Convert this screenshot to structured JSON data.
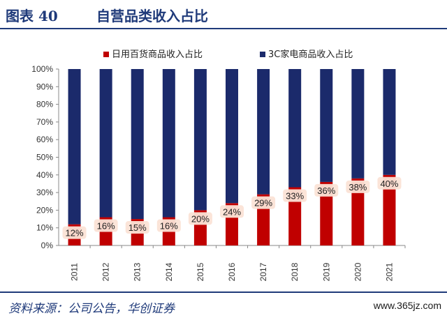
{
  "header": {
    "figure_label": "图表 40",
    "title": "自营品类收入占比"
  },
  "source": {
    "text": "资料来源：公司公告，华创证券"
  },
  "watermark": {
    "text": "www.365jz.com"
  },
  "colors": {
    "daily": "#c00000",
    "electronics": "#1b2a6b",
    "label_bg": "#fbe3d6"
  },
  "chart_data": {
    "type": "bar",
    "stacked": true,
    "categories": [
      "2011",
      "2012",
      "2013",
      "2014",
      "2015",
      "2016",
      "2017",
      "2018",
      "2019",
      "2020",
      "2021"
    ],
    "series": [
      {
        "name": "日用百货商品收入占比",
        "values": [
          12,
          16,
          15,
          16,
          20,
          24,
          29,
          33,
          36,
          38,
          40
        ]
      },
      {
        "name": "3C家电商品收入占比",
        "values": [
          88,
          84,
          85,
          84,
          80,
          76,
          71,
          67,
          64,
          62,
          60
        ]
      }
    ],
    "data_labels": [
      "12%",
      "16%",
      "15%",
      "16%",
      "20%",
      "24%",
      "29%",
      "33%",
      "36%",
      "38%",
      "40%"
    ],
    "y_ticks": [
      "0%",
      "10%",
      "20%",
      "30%",
      "40%",
      "50%",
      "60%",
      "70%",
      "80%",
      "90%",
      "100%"
    ],
    "ylim": [
      0,
      100
    ],
    "legend": "top",
    "grid": false
  }
}
